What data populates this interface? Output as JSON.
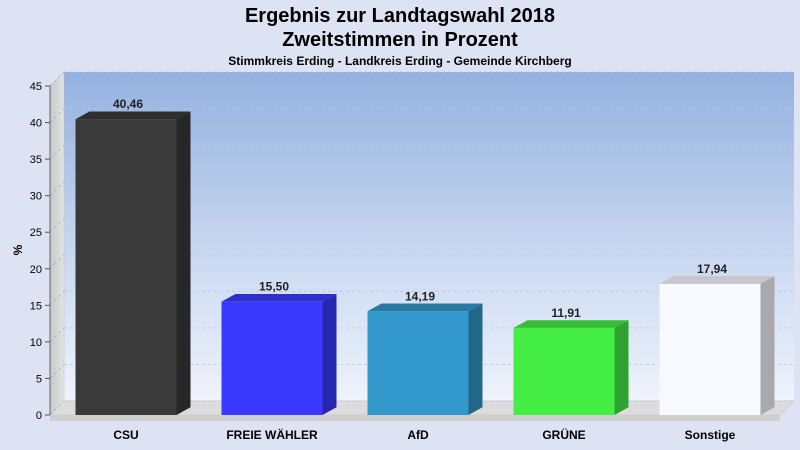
{
  "chart_data": {
    "type": "bar",
    "title": "Ergebnis zur Landtagswahl 2018",
    "subtitle": "Zweitstimmen in Prozent",
    "subtitle2": "Stimmkreis Erding - Landkreis Erding - Gemeinde Kirchberg",
    "ylabel": "%",
    "xlabel": "",
    "ylim": [
      0,
      45
    ],
    "yticks": [
      "0",
      "5",
      "10",
      "15",
      "20",
      "25",
      "30",
      "35",
      "40",
      "45"
    ],
    "grid": true,
    "categories": [
      "CSU",
      "FREIE WÄHLER",
      "AfD",
      "GRÜNE",
      "Sonstige"
    ],
    "values": [
      40.46,
      15.5,
      14.19,
      11.91,
      17.94
    ],
    "value_labels": [
      "40,46",
      "15,50",
      "14,19",
      "11,91",
      "17,94"
    ],
    "colors": [
      "#3a3a3a",
      "#3a3aff",
      "#3399cc",
      "#44ee44",
      "#f8f8ff"
    ]
  }
}
